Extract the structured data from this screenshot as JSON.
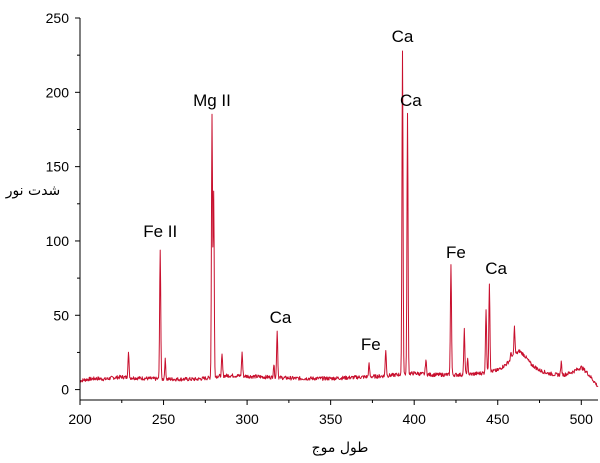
{
  "chart_data": {
    "type": "line",
    "xlabel": "طول موج",
    "ylabel": "شدت نور",
    "xlim": [
      200,
      510
    ],
    "ylim": [
      -7,
      250
    ],
    "x_ticks": [
      200,
      250,
      300,
      350,
      400,
      450,
      500
    ],
    "y_ticks": [
      0,
      50,
      100,
      150,
      200,
      250
    ],
    "grid": false,
    "legend": "none",
    "line_color": "#c8102e",
    "baseline": [
      [
        200,
        6
      ],
      [
        205,
        7
      ],
      [
        210,
        7.5
      ],
      [
        215,
        7
      ],
      [
        220,
        8
      ],
      [
        225,
        8.5
      ],
      [
        230,
        8
      ],
      [
        240,
        7.5
      ],
      [
        250,
        7
      ],
      [
        260,
        7
      ],
      [
        270,
        7
      ],
      [
        278,
        8
      ],
      [
        282,
        9
      ],
      [
        290,
        9.5
      ],
      [
        300,
        9
      ],
      [
        310,
        8.5
      ],
      [
        320,
        8
      ],
      [
        330,
        7.5
      ],
      [
        340,
        7.5
      ],
      [
        350,
        7.5
      ],
      [
        360,
        8
      ],
      [
        370,
        8.5
      ],
      [
        380,
        9
      ],
      [
        390,
        10
      ],
      [
        400,
        11
      ],
      [
        410,
        10
      ],
      [
        420,
        10
      ],
      [
        430,
        10
      ],
      [
        440,
        11
      ],
      [
        450,
        13
      ],
      [
        455,
        17
      ],
      [
        460,
        23
      ],
      [
        463,
        26
      ],
      [
        466,
        23
      ],
      [
        470,
        17
      ],
      [
        475,
        13
      ],
      [
        480,
        11
      ],
      [
        485,
        10
      ],
      [
        490,
        10
      ],
      [
        495,
        12
      ],
      [
        500,
        15
      ],
      [
        503,
        12
      ],
      [
        506,
        8
      ],
      [
        510,
        2
      ]
    ],
    "peaks": [
      {
        "x": 229,
        "y": 25
      },
      {
        "x": 248,
        "y": 95
      },
      {
        "x": 251,
        "y": 20
      },
      {
        "x": 279,
        "y": 185
      },
      {
        "x": 280,
        "y": 132
      },
      {
        "x": 285,
        "y": 23
      },
      {
        "x": 297,
        "y": 25
      },
      {
        "x": 316,
        "y": 17
      },
      {
        "x": 318,
        "y": 40
      },
      {
        "x": 373,
        "y": 17
      },
      {
        "x": 383,
        "y": 27
      },
      {
        "x": 393,
        "y": 228
      },
      {
        "x": 396,
        "y": 185
      },
      {
        "x": 407,
        "y": 20
      },
      {
        "x": 422,
        "y": 85
      },
      {
        "x": 430,
        "y": 40
      },
      {
        "x": 432,
        "y": 20
      },
      {
        "x": 443,
        "y": 55
      },
      {
        "x": 445,
        "y": 72
      },
      {
        "x": 458,
        "y": 25
      },
      {
        "x": 460,
        "y": 42
      },
      {
        "x": 488,
        "y": 18
      }
    ],
    "annotations": [
      {
        "text": "Fe II",
        "x": 248,
        "y": 100
      },
      {
        "text": "Mg II",
        "x": 279,
        "y": 188
      },
      {
        "text": "Ca",
        "x": 320,
        "y": 42
      },
      {
        "text": "Fe",
        "x": 374,
        "y": 24
      },
      {
        "text": "Ca",
        "x": 393,
        "y": 231
      },
      {
        "text": "Ca",
        "x": 398,
        "y": 188
      },
      {
        "text": "Fe",
        "x": 425,
        "y": 86
      },
      {
        "text": "Ca",
        "x": 449,
        "y": 75
      }
    ]
  }
}
